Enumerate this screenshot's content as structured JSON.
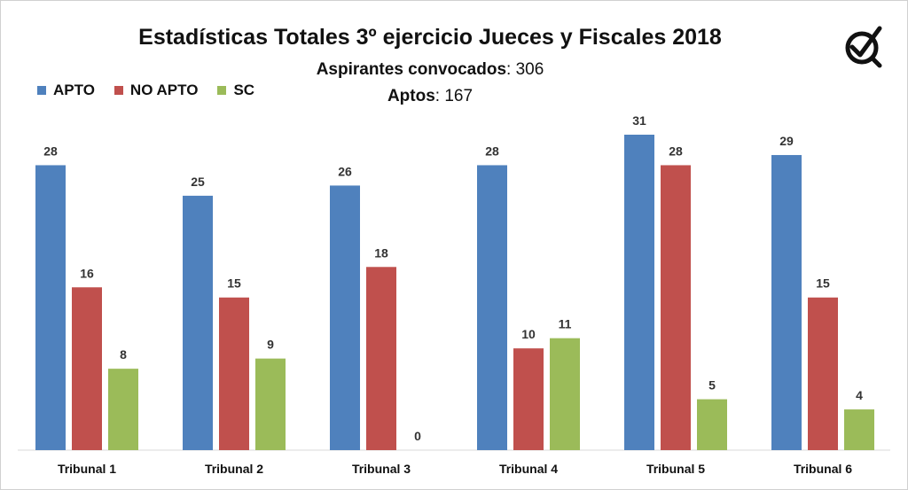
{
  "chart_data": {
    "type": "bar",
    "title": "Estadísticas Totales 3º ejercicio Jueces y Fiscales 2018",
    "subtitle_lines": [
      {
        "label": "Aspirantes convocados",
        "value": "306"
      },
      {
        "label": "Aptos",
        "value": "167"
      }
    ],
    "categories": [
      "Tribunal 1",
      "Tribunal 2",
      "Tribunal 3",
      "Tribunal 4",
      "Tribunal 5",
      "Tribunal 6"
    ],
    "series": [
      {
        "name": "APTO",
        "color": "#4f81bd",
        "values": [
          28,
          25,
          26,
          28,
          31,
          29
        ]
      },
      {
        "name": "NO APTO",
        "color": "#c0504d",
        "values": [
          16,
          15,
          18,
          10,
          28,
          15
        ]
      },
      {
        "name": "SC",
        "color": "#9bbb59",
        "values": [
          8,
          9,
          0,
          11,
          5,
          4
        ]
      }
    ],
    "ylim": [
      0,
      31
    ],
    "grid": false,
    "legend_position": "top-left"
  },
  "logo": {
    "icon": "check-circle-logo-icon"
  }
}
